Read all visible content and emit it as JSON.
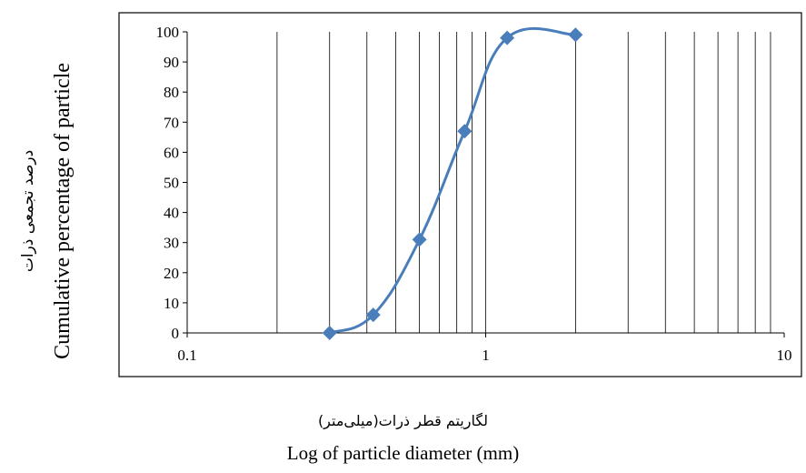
{
  "chart_data": {
    "type": "scatter",
    "xscale": "log",
    "xlim": [
      0.1,
      10
    ],
    "ylim": [
      0,
      100
    ],
    "x_ticks": [
      0.1,
      1,
      10
    ],
    "x_tick_labels": [
      "0.1",
      "1",
      "10"
    ],
    "y_ticks": [
      0,
      10,
      20,
      30,
      40,
      50,
      60,
      70,
      80,
      90,
      100
    ],
    "grid": "vertical",
    "xlabel": "Log of particle diameter (mm)",
    "xlabel_fa": "لگاریتم قطر ذرات(میلی‌متر)",
    "ylabel": "Cumulative percentage of particle",
    "ylabel_fa": "درصد تجمعی ذرات",
    "series": [
      {
        "x": [
          0.3,
          0.42,
          0.6,
          0.85,
          1.18,
          2.0
        ],
        "y": [
          0,
          6,
          31,
          67,
          98,
          99
        ],
        "color": "#4a7ebb",
        "marker": "diamond",
        "smooth": true
      }
    ]
  }
}
